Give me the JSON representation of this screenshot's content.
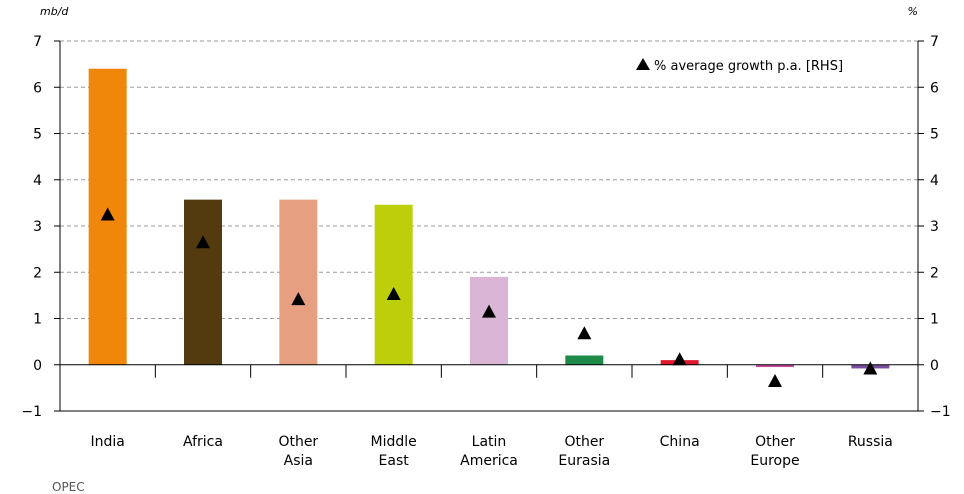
{
  "chart_data": {
    "type": "bar",
    "left_unit": "mb/d",
    "right_unit": "%",
    "ylim": [
      -1,
      7
    ],
    "yticks": [
      -1,
      0,
      1,
      2,
      3,
      4,
      5,
      6,
      7
    ],
    "ytick_labels": [
      "−1",
      "0",
      "1",
      "2",
      "3",
      "4",
      "5",
      "6",
      "7"
    ],
    "grid": true,
    "grid_style": "dashed",
    "categories": [
      {
        "lines": [
          "India"
        ]
      },
      {
        "lines": [
          "Africa"
        ]
      },
      {
        "lines": [
          "Other",
          "Asia"
        ]
      },
      {
        "lines": [
          "Middle",
          "East"
        ]
      },
      {
        "lines": [
          "Latin",
          "America"
        ]
      },
      {
        "lines": [
          "Other",
          "Eurasia"
        ]
      },
      {
        "lines": [
          "China"
        ]
      },
      {
        "lines": [
          "Other",
          "Europe"
        ]
      },
      {
        "lines": [
          "Russia"
        ]
      }
    ],
    "bars": [
      6.4,
      3.57,
      3.57,
      3.46,
      1.9,
      0.2,
      0.1,
      -0.05,
      -0.08
    ],
    "bar_colors": [
      "#f0870a",
      "#543b0f",
      "#e6a081",
      "#bccf0a",
      "#dbb5d6",
      "#1d8a4a",
      "#e0182d",
      "#cc4a9e",
      "#7a4fa0"
    ],
    "growth": [
      3.25,
      2.65,
      1.42,
      1.53,
      1.15,
      0.68,
      0.12,
      -0.35,
      -0.08
    ],
    "legend": {
      "label": "% average growth p.a. [RHS]",
      "position": "top-right",
      "marker": "triangle"
    }
  },
  "source": "OPEC"
}
